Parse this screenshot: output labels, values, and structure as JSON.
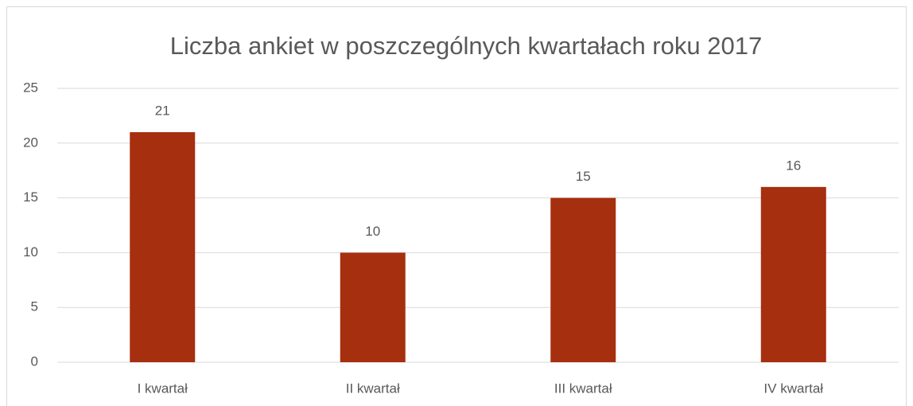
{
  "chart_data": {
    "type": "bar",
    "title": "Liczba ankiet w poszczególnych kwartałach roku 2017",
    "categories": [
      "I kwartał",
      "II kwartał",
      "III kwartał",
      "IV kwartał"
    ],
    "values": [
      21,
      10,
      15,
      16
    ],
    "color": "#a52f0f",
    "ylim": [
      0,
      25
    ],
    "yticks": [
      0,
      5,
      10,
      15,
      20,
      25
    ],
    "grid": true
  }
}
